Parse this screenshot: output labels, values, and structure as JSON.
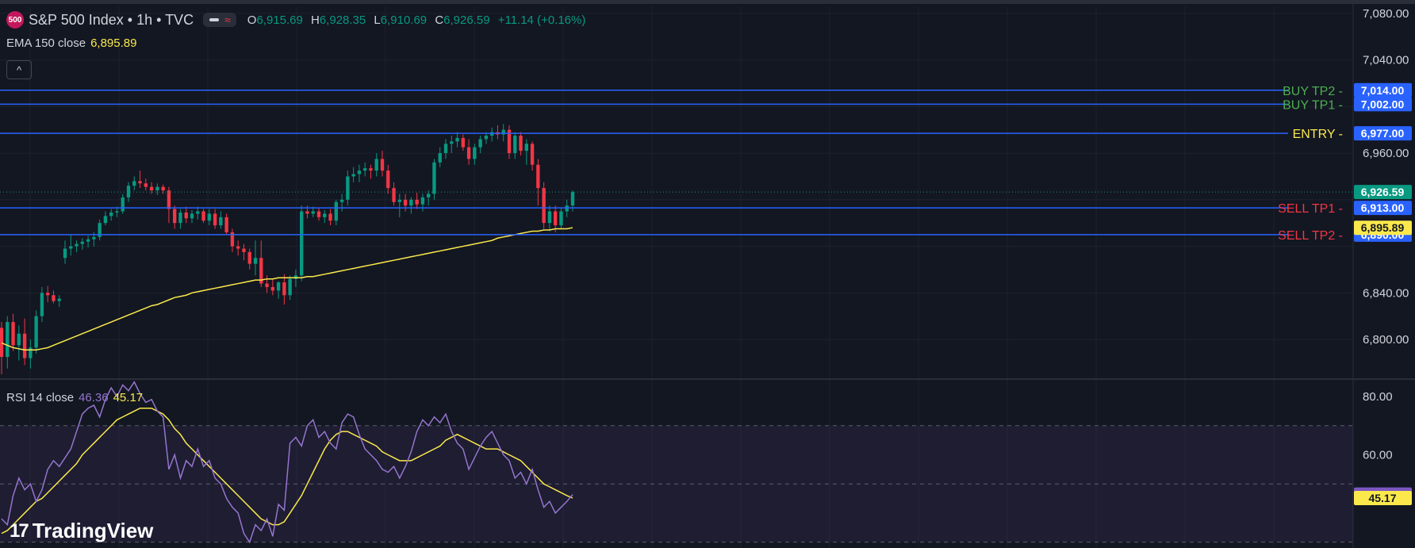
{
  "header": {
    "logo_text": "500",
    "symbol": "S&P 500 Index • 1h • TVC",
    "approx_icon": "≈",
    "ohlc": {
      "o_label": "O",
      "o": "6,915.69",
      "h_label": "H",
      "h": "6,928.35",
      "l_label": "L",
      "l": "6,910.69",
      "c_label": "C",
      "c": "6,926.59",
      "change": "+11.14 (+0.16%)"
    }
  },
  "ema_legend": {
    "label": "EMA 150 close",
    "value": "6,895.89"
  },
  "collapse_icon": "^",
  "rsi_legend": {
    "label": "RSI 14 close",
    "value": "46.36",
    "ma_value": "45.17"
  },
  "brand": {
    "mark": "17",
    "name": "TradingView"
  },
  "colors": {
    "background": "#131722",
    "up": "#089981",
    "down": "#f23645",
    "level_line": "#2962ff",
    "ema": "#fbe94c",
    "rsi": "#7e57c2",
    "rsi_ma": "#fbe94c",
    "buy_label": "#4caf50",
    "sell_label": "#f23645",
    "entry_label": "#fbe94c"
  },
  "chart_data": [
    {
      "type": "candlestick",
      "title": "S&P 500 Index • 1h • TVC",
      "y_axis": {
        "ylim": [
          6766,
          7086
        ],
        "ticks": [
          7080,
          7040,
          6960,
          6840,
          6800
        ],
        "tick_labels": [
          "7,080.00",
          "7,040.00",
          "6,960.00",
          "6,840.00",
          "6,800.00"
        ]
      },
      "grid": true,
      "levels": [
        {
          "name": "BUY TP2",
          "price": 7014.0,
          "price_label": "7,014.00",
          "color": "#4caf50"
        },
        {
          "name": "BUY TP1",
          "price": 7002.0,
          "price_label": "7,002.00",
          "color": "#4caf50"
        },
        {
          "name": "ENTRY",
          "price": 6977.0,
          "price_label": "6,977.00",
          "color": "#fbe94c"
        },
        {
          "name": "SELL TP1",
          "price": 6913.0,
          "price_label": "6,913.00",
          "color": "#f23645"
        },
        {
          "name": "SELL TP2",
          "price": 6890.0,
          "price_label": "6,890.00",
          "color": "#f23645"
        }
      ],
      "last_price": {
        "value": 6926.59,
        "label": "6,926.59"
      },
      "ema": {
        "name": "EMA 150 close",
        "value_label": "6,895.89",
        "last": 6895.89,
        "values": [
          6797,
          6795,
          6793,
          6792,
          6791,
          6791,
          6791,
          6792,
          6793,
          6795,
          6797,
          6799,
          6801,
          6803,
          6805,
          6807,
          6809,
          6811,
          6813,
          6815,
          6817,
          6819,
          6821,
          6823,
          6825,
          6827,
          6829,
          6830,
          6832,
          6834,
          6836,
          6837,
          6838,
          6840,
          6841,
          6842,
          6843,
          6844,
          6845,
          6846,
          6847,
          6848,
          6849,
          6850,
          6851,
          6851,
          6852,
          6852,
          6853,
          6853,
          6853,
          6853,
          6853,
          6854,
          6854,
          6855,
          6856,
          6857,
          6858,
          6859,
          6860,
          6861,
          6862,
          6863,
          6864,
          6865,
          6866,
          6867,
          6868,
          6869,
          6870,
          6871,
          6872,
          6873,
          6874,
          6875,
          6876,
          6877,
          6878,
          6879,
          6880,
          6881,
          6882,
          6883,
          6884,
          6885,
          6887,
          6888,
          6889,
          6890,
          6891,
          6892,
          6893,
          6893,
          6894,
          6894,
          6895,
          6895,
          6895,
          6896
        ]
      },
      "candles": [
        [
          6810,
          6815,
          6770,
          6785
        ],
        [
          6785,
          6820,
          6775,
          6815
        ],
        [
          6815,
          6822,
          6790,
          6795
        ],
        [
          6795,
          6812,
          6782,
          6805
        ],
        [
          6805,
          6818,
          6778,
          6784
        ],
        [
          6784,
          6800,
          6775,
          6793
        ],
        [
          6793,
          6825,
          6788,
          6820
        ],
        [
          6820,
          6845,
          6815,
          6840
        ],
        [
          6840,
          6846,
          6832,
          6838
        ],
        [
          6838,
          6842,
          6831,
          6833
        ],
        [
          6833,
          6838,
          6828,
          6835
        ],
        [
          6870,
          6885,
          6865,
          6878
        ],
        [
          6878,
          6890,
          6872,
          6880
        ],
        [
          6880,
          6885,
          6875,
          6882
        ],
        [
          6882,
          6887,
          6877,
          6884
        ],
        [
          6884,
          6889,
          6879,
          6886
        ],
        [
          6886,
          6892,
          6880,
          6888
        ],
        [
          6888,
          6903,
          6885,
          6900
        ],
        [
          6900,
          6910,
          6898,
          6906
        ],
        [
          6906,
          6912,
          6902,
          6909
        ],
        [
          6909,
          6914,
          6905,
          6910
        ],
        [
          6910,
          6925,
          6908,
          6922
        ],
        [
          6922,
          6935,
          6918,
          6932
        ],
        [
          6932,
          6940,
          6928,
          6936
        ],
        [
          6936,
          6945,
          6930,
          6934
        ],
        [
          6934,
          6938,
          6928,
          6931
        ],
        [
          6931,
          6935,
          6925,
          6928
        ],
        [
          6928,
          6934,
          6924,
          6931
        ],
        [
          6931,
          6933,
          6925,
          6928
        ],
        [
          6928,
          6931,
          6900,
          6912
        ],
        [
          6912,
          6915,
          6895,
          6900
        ],
        [
          6900,
          6912,
          6895,
          6909
        ],
        [
          6909,
          6914,
          6900,
          6904
        ],
        [
          6904,
          6911,
          6900,
          6908
        ],
        [
          6908,
          6914,
          6903,
          6910
        ],
        [
          6910,
          6912,
          6900,
          6902
        ],
        [
          6902,
          6912,
          6898,
          6908
        ],
        [
          6908,
          6912,
          6895,
          6898
        ],
        [
          6898,
          6910,
          6895,
          6905
        ],
        [
          6905,
          6908,
          6890,
          6892
        ],
        [
          6892,
          6895,
          6875,
          6880
        ],
        [
          6880,
          6885,
          6872,
          6878
        ],
        [
          6878,
          6882,
          6868,
          6875
        ],
        [
          6875,
          6878,
          6860,
          6865
        ],
        [
          6865,
          6885,
          6855,
          6870
        ],
        [
          6870,
          6885,
          6845,
          6848
        ],
        [
          6848,
          6855,
          6840,
          6845
        ],
        [
          6845,
          6852,
          6838,
          6842
        ],
        [
          6842,
          6850,
          6835,
          6849
        ],
        [
          6849,
          6856,
          6830,
          6838
        ],
        [
          6838,
          6855,
          6834,
          6852
        ],
        [
          6852,
          6860,
          6845,
          6855
        ],
        [
          6855,
          6915,
          6850,
          6910
        ],
        [
          6910,
          6915,
          6904,
          6908
        ],
        [
          6908,
          6914,
          6905,
          6910
        ],
        [
          6910,
          6913,
          6902,
          6905
        ],
        [
          6905,
          6911,
          6900,
          6908
        ],
        [
          6908,
          6912,
          6898,
          6902
        ],
        [
          6902,
          6920,
          6898,
          6918
        ],
        [
          6918,
          6925,
          6910,
          6920
        ],
        [
          6920,
          6945,
          6915,
          6940
        ],
        [
          6940,
          6948,
          6935,
          6942
        ],
        [
          6942,
          6950,
          6935,
          6945
        ],
        [
          6945,
          6952,
          6940,
          6947
        ],
        [
          6947,
          6950,
          6938,
          6945
        ],
        [
          6945,
          6960,
          6940,
          6955
        ],
        [
          6955,
          6962,
          6940,
          6945
        ],
        [
          6945,
          6950,
          6925,
          6930
        ],
        [
          6930,
          6935,
          6915,
          6918
        ],
        [
          6918,
          6925,
          6905,
          6920
        ],
        [
          6920,
          6925,
          6910,
          6915
        ],
        [
          6915,
          6922,
          6908,
          6920
        ],
        [
          6920,
          6926,
          6912,
          6916
        ],
        [
          6916,
          6925,
          6910,
          6922
        ],
        [
          6922,
          6928,
          6915,
          6925
        ],
        [
          6925,
          6955,
          6920,
          6952
        ],
        [
          6952,
          6965,
          6948,
          6960
        ],
        [
          6960,
          6972,
          6955,
          6968
        ],
        [
          6968,
          6975,
          6960,
          6970
        ],
        [
          6970,
          6978,
          6965,
          6973
        ],
        [
          6973,
          6976,
          6962,
          6965
        ],
        [
          6965,
          6972,
          6950,
          6955
        ],
        [
          6955,
          6968,
          6950,
          6965
        ],
        [
          6965,
          6975,
          6960,
          6972
        ],
        [
          6972,
          6978,
          6968,
          6975
        ],
        [
          6975,
          6982,
          6970,
          6978
        ],
        [
          6978,
          6984,
          6972,
          6976
        ],
        [
          6976,
          6985,
          6970,
          6980
        ],
        [
          6980,
          6984,
          6955,
          6960
        ],
        [
          6960,
          6978,
          6955,
          6975
        ],
        [
          6975,
          6978,
          6958,
          6962
        ],
        [
          6962,
          6972,
          6950,
          6968
        ],
        [
          6968,
          6970,
          6945,
          6950
        ],
        [
          6950,
          6955,
          6915,
          6930
        ],
        [
          6930,
          6935,
          6895,
          6900
        ],
        [
          6900,
          6915,
          6893,
          6910
        ],
        [
          6910,
          6915,
          6892,
          6898
        ],
        [
          6898,
          6913,
          6895,
          6910
        ],
        [
          6910,
          6920,
          6905,
          6915
        ],
        [
          6915,
          6928,
          6910,
          6926.59
        ]
      ]
    },
    {
      "type": "line",
      "title": "RSI 14 close",
      "y_axis": {
        "ylim": [
          28,
          86
        ],
        "ticks": [
          80,
          60
        ],
        "tick_labels": [
          "80.00",
          "60.00"
        ]
      },
      "bands": [
        70,
        50,
        30
      ],
      "grid": true,
      "series": [
        {
          "name": "RSI 14 close",
          "value_label": "46.36",
          "values": [
            38,
            36,
            46,
            52,
            48,
            50,
            44,
            48,
            55,
            58,
            56,
            59,
            62,
            68,
            74,
            76,
            77,
            73,
            79,
            83,
            80,
            84,
            82,
            85,
            81,
            78,
            79,
            75,
            73,
            55,
            60,
            52,
            58,
            56,
            62,
            56,
            58,
            52,
            50,
            45,
            42,
            40,
            33,
            30,
            36,
            34,
            38,
            32,
            43,
            41,
            64,
            66,
            63,
            70,
            72,
            66,
            68,
            64,
            62,
            71,
            74,
            73,
            67,
            62,
            60,
            58,
            55,
            54,
            56,
            52,
            56,
            61,
            68,
            72,
            70,
            73,
            71,
            74,
            68,
            64,
            62,
            55,
            59,
            63,
            66,
            68,
            64,
            60,
            58,
            52,
            54,
            50,
            55,
            48,
            42,
            44,
            40,
            42,
            44,
            46.36
          ]
        },
        {
          "name": "RSI 14 close MA",
          "value_label": "45.17",
          "values": [
            33,
            34,
            36,
            38,
            40,
            42,
            44,
            45,
            47,
            49,
            51,
            53,
            55,
            57,
            60,
            62,
            64,
            66,
            68,
            70,
            72,
            73,
            74,
            75,
            76,
            76,
            76,
            75,
            74,
            72,
            69,
            67,
            64,
            62,
            60,
            58,
            56,
            54,
            52,
            50,
            48,
            46,
            44,
            42,
            40,
            38,
            37,
            36,
            36,
            37,
            40,
            43,
            46,
            50,
            54,
            58,
            62,
            65,
            67,
            68,
            68,
            67,
            66,
            65,
            64,
            63,
            61,
            60,
            59,
            58,
            58,
            58,
            59,
            60,
            61,
            62,
            63,
            65,
            66,
            67,
            66,
            65,
            64,
            63,
            62,
            62,
            62,
            61,
            60,
            59,
            58,
            56,
            54,
            52,
            50,
            49,
            48,
            47,
            46,
            45.17
          ]
        }
      ]
    }
  ]
}
